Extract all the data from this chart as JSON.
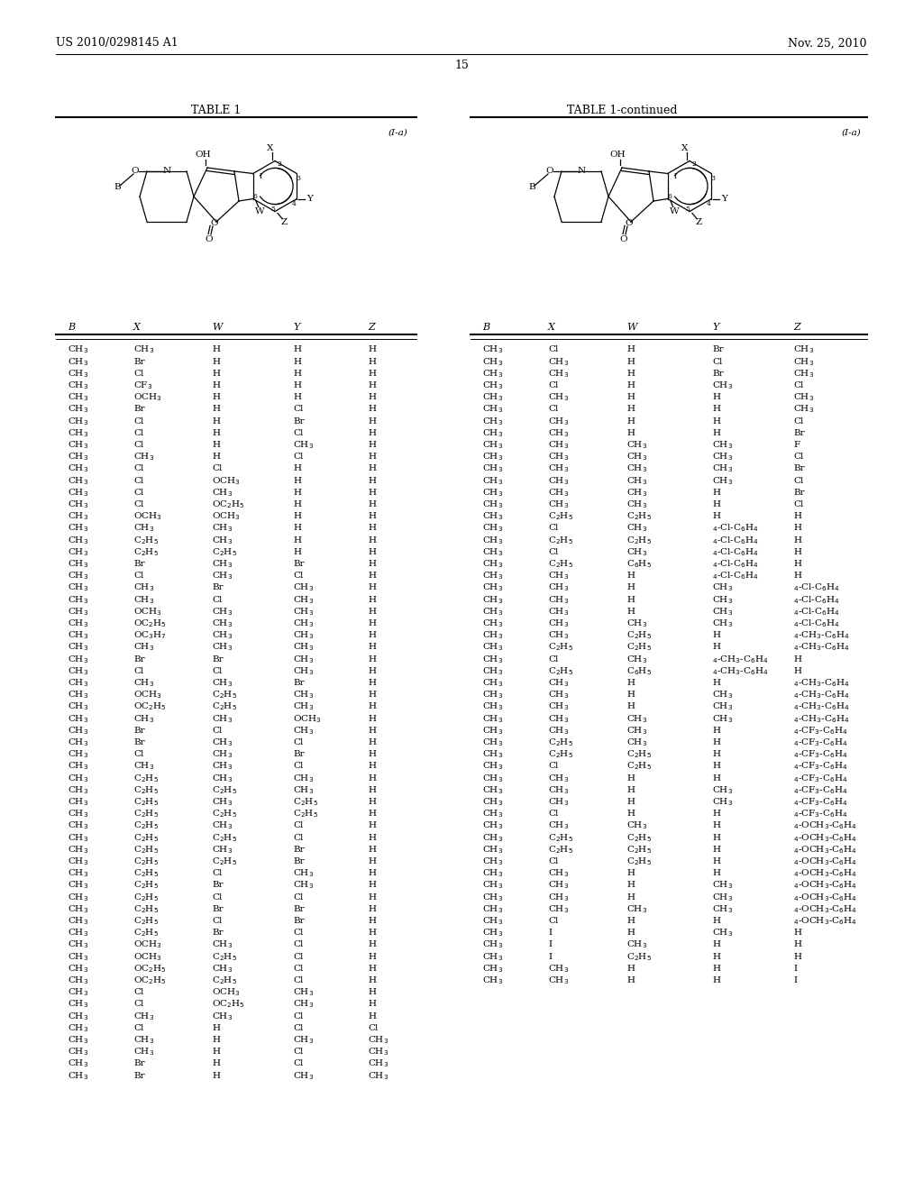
{
  "header_left": "US 2010/0298145 A1",
  "header_right": "Nov. 25, 2010",
  "page_number": "15",
  "table1_title": "TABLE 1",
  "table2_title": "TABLE 1-continued",
  "formula_label": "(I-a)",
  "col_headers": [
    "B",
    "X",
    "W",
    "Y",
    "Z"
  ],
  "table1_rows": [
    [
      "CH3",
      "CH3",
      "H",
      "H",
      "H"
    ],
    [
      "CH3",
      "Br",
      "H",
      "H",
      "H"
    ],
    [
      "CH3",
      "Cl",
      "H",
      "H",
      "H"
    ],
    [
      "CH3",
      "CF3",
      "H",
      "H",
      "H"
    ],
    [
      "CH3",
      "OCH3",
      "H",
      "H",
      "H"
    ],
    [
      "CH3",
      "Br",
      "H",
      "Cl",
      "H"
    ],
    [
      "CH3",
      "Cl",
      "H",
      "Br",
      "H"
    ],
    [
      "CH3",
      "Cl",
      "H",
      "Cl",
      "H"
    ],
    [
      "CH3",
      "Cl",
      "H",
      "CH3",
      "H"
    ],
    [
      "CH3",
      "CH3",
      "H",
      "Cl",
      "H"
    ],
    [
      "CH3",
      "Cl",
      "Cl",
      "H",
      "H"
    ],
    [
      "CH3",
      "Cl",
      "OCH3",
      "H",
      "H"
    ],
    [
      "CH3",
      "Cl",
      "CH3",
      "H",
      "H"
    ],
    [
      "CH3",
      "Cl",
      "OC2H5",
      "H",
      "H"
    ],
    [
      "CH3",
      "OCH3",
      "OCH3",
      "H",
      "H"
    ],
    [
      "CH3",
      "CH3",
      "CH3",
      "H",
      "H"
    ],
    [
      "CH3",
      "C2H5",
      "CH3",
      "H",
      "H"
    ],
    [
      "CH3",
      "C2H5",
      "C2H5",
      "H",
      "H"
    ],
    [
      "CH3",
      "Br",
      "CH3",
      "Br",
      "H"
    ],
    [
      "CH3",
      "Cl",
      "CH3",
      "Cl",
      "H"
    ],
    [
      "CH3",
      "CH3",
      "Br",
      "CH3",
      "H"
    ],
    [
      "CH3",
      "CH3",
      "Cl",
      "CH3",
      "H"
    ],
    [
      "CH3",
      "OCH3",
      "CH3",
      "CH3",
      "H"
    ],
    [
      "CH3",
      "OC2H5",
      "CH3",
      "CH3",
      "H"
    ],
    [
      "CH3",
      "OC3H7",
      "CH3",
      "CH3",
      "H"
    ],
    [
      "CH3",
      "CH3",
      "CH3",
      "CH3",
      "H"
    ],
    [
      "CH3",
      "Br",
      "Br",
      "CH3",
      "H"
    ],
    [
      "CH3",
      "Cl",
      "Cl",
      "CH3",
      "H"
    ],
    [
      "CH3",
      "CH3",
      "CH3",
      "Br",
      "H"
    ],
    [
      "CH3",
      "OCH3",
      "C2H5",
      "CH3",
      "H"
    ],
    [
      "CH3",
      "OC2H5",
      "C2H5",
      "CH3",
      "H"
    ],
    [
      "CH3",
      "CH3",
      "CH3",
      "OCH3",
      "H"
    ],
    [
      "CH3",
      "Br",
      "Cl",
      "CH3",
      "H"
    ],
    [
      "CH3",
      "Br",
      "CH3",
      "Cl",
      "H"
    ],
    [
      "CH3",
      "Cl",
      "CH3",
      "Br",
      "H"
    ],
    [
      "CH3",
      "CH3",
      "CH3",
      "Cl",
      "H"
    ],
    [
      "CH3",
      "C2H5",
      "CH3",
      "CH3",
      "H"
    ],
    [
      "CH3",
      "C2H5",
      "C2H5",
      "CH3",
      "H"
    ],
    [
      "CH3",
      "C2H5",
      "CH3",
      "C2H5",
      "H"
    ],
    [
      "CH3",
      "C2H5",
      "C2H5",
      "C2H5",
      "H"
    ],
    [
      "CH3",
      "C2H5",
      "CH3",
      "Cl",
      "H"
    ],
    [
      "CH3",
      "C2H5",
      "C2H5",
      "Cl",
      "H"
    ],
    [
      "CH3",
      "C2H5",
      "CH3",
      "Br",
      "H"
    ],
    [
      "CH3",
      "C2H5",
      "C2H5",
      "Br",
      "H"
    ],
    [
      "CH3",
      "C2H5",
      "Cl",
      "CH3",
      "H"
    ],
    [
      "CH3",
      "C2H5",
      "Br",
      "CH3",
      "H"
    ],
    [
      "CH3",
      "C2H5",
      "Cl",
      "Cl",
      "H"
    ],
    [
      "CH3",
      "C2H5",
      "Br",
      "Br",
      "H"
    ],
    [
      "CH3",
      "C2H5",
      "Cl",
      "Br",
      "H"
    ],
    [
      "CH3",
      "C2H5",
      "Br",
      "Cl",
      "H"
    ],
    [
      "CH3",
      "OCH3",
      "CH3",
      "Cl",
      "H"
    ],
    [
      "CH3",
      "OCH3",
      "C2H5",
      "Cl",
      "H"
    ],
    [
      "CH3",
      "OC2H5",
      "CH3",
      "Cl",
      "H"
    ],
    [
      "CH3",
      "OC2H5",
      "C2H5",
      "Cl",
      "H"
    ],
    [
      "CH3",
      "Cl",
      "OCH3",
      "CH3",
      "H"
    ],
    [
      "CH3",
      "Cl",
      "OC2H5",
      "CH3",
      "H"
    ],
    [
      "CH3",
      "CH3",
      "CH3",
      "Cl",
      "H"
    ],
    [
      "CH3",
      "Cl",
      "H",
      "Cl",
      "Cl"
    ],
    [
      "CH3",
      "CH3",
      "H",
      "CH3",
      "CH3"
    ],
    [
      "CH3",
      "CH3",
      "H",
      "Cl",
      "CH3"
    ],
    [
      "CH3",
      "Br",
      "H",
      "Cl",
      "CH3"
    ],
    [
      "CH3",
      "Br",
      "H",
      "CH3",
      "CH3"
    ]
  ],
  "table2_rows": [
    [
      "CH3",
      "Cl",
      "H",
      "Br",
      "CH3"
    ],
    [
      "CH3",
      "CH3",
      "H",
      "Cl",
      "CH3"
    ],
    [
      "CH3",
      "CH3",
      "H",
      "Br",
      "CH3"
    ],
    [
      "CH3",
      "Cl",
      "H",
      "CH3",
      "Cl"
    ],
    [
      "CH3",
      "CH3",
      "H",
      "H",
      "CH3"
    ],
    [
      "CH3",
      "Cl",
      "H",
      "H",
      "CH3"
    ],
    [
      "CH3",
      "CH3",
      "H",
      "H",
      "Cl"
    ],
    [
      "CH3",
      "CH3",
      "H",
      "H",
      "Br"
    ],
    [
      "CH3",
      "CH3",
      "CH3",
      "CH3",
      "F"
    ],
    [
      "CH3",
      "CH3",
      "CH3",
      "CH3",
      "Cl"
    ],
    [
      "CH3",
      "CH3",
      "CH3",
      "CH3",
      "Br"
    ],
    [
      "CH3",
      "CH3",
      "CH3",
      "CH3",
      "Cl"
    ],
    [
      "CH3",
      "CH3",
      "CH3",
      "H",
      "Br"
    ],
    [
      "CH3",
      "CH3",
      "CH3",
      "H",
      "Cl"
    ],
    [
      "CH3",
      "C2H5",
      "C2H5",
      "H",
      "H"
    ],
    [
      "CH3",
      "Cl",
      "CH3",
      "4-Cl-C6H4",
      "H"
    ],
    [
      "CH3",
      "C2H5",
      "C2H5",
      "4-Cl-C6H4",
      "H"
    ],
    [
      "CH3",
      "Cl",
      "CH3",
      "4-Cl-C6H4",
      "H"
    ],
    [
      "CH3",
      "C2H5",
      "C6H5",
      "4-Cl-C6H4",
      "H"
    ],
    [
      "CH3",
      "CH3",
      "H",
      "4-Cl-C6H4",
      "H"
    ],
    [
      "CH3",
      "CH3",
      "H",
      "CH3",
      "4-Cl-C6H4"
    ],
    [
      "CH3",
      "CH3",
      "H",
      "CH3",
      "4-Cl-C6H4"
    ],
    [
      "CH3",
      "CH3",
      "H",
      "CH3",
      "4-Cl-C6H4"
    ],
    [
      "CH3",
      "CH3",
      "CH3",
      "CH3",
      "4-Cl-C6H4"
    ],
    [
      "CH3",
      "CH3",
      "C2H5",
      "H",
      "4-CH3-C6H4"
    ],
    [
      "CH3",
      "C2H5",
      "C2H5",
      "H",
      "4-CH3-C6H4"
    ],
    [
      "CH3",
      "Cl",
      "CH3",
      "4-CH3-C6H4",
      "H"
    ],
    [
      "CH3",
      "C2H5",
      "C6H5",
      "4-CH3-C6H4",
      "H"
    ],
    [
      "CH3",
      "CH3",
      "H",
      "H",
      "4-CH3-C6H4"
    ],
    [
      "CH3",
      "CH3",
      "H",
      "CH3",
      "4-CH3-C6H4"
    ],
    [
      "CH3",
      "CH3",
      "H",
      "CH3",
      "4-CH3-C6H4"
    ],
    [
      "CH3",
      "CH3",
      "CH3",
      "CH3",
      "4-CH3-C6H4"
    ],
    [
      "CH3",
      "CH3",
      "CH3",
      "H",
      "4-CF3-C6H4"
    ],
    [
      "CH3",
      "C2H5",
      "CH3",
      "H",
      "4-CF3-C6H4"
    ],
    [
      "CH3",
      "C2H5",
      "C2H5",
      "H",
      "4-CF3-C6H4"
    ],
    [
      "CH3",
      "Cl",
      "C2H5",
      "H",
      "4-CF3-C6H4"
    ],
    [
      "CH3",
      "CH3",
      "H",
      "H",
      "4-CF3-C6H4"
    ],
    [
      "CH3",
      "CH3",
      "H",
      "CH3",
      "4-CF3-C6H4"
    ],
    [
      "CH3",
      "CH3",
      "H",
      "CH3",
      "4-CF3-C6H4"
    ],
    [
      "CH3",
      "Cl",
      "H",
      "H",
      "4-CF3-C6H4"
    ],
    [
      "CH3",
      "CH3",
      "CH3",
      "H",
      "4-OCH3-C6H4"
    ],
    [
      "CH3",
      "C2H5",
      "C2H5",
      "H",
      "4-OCH3-C6H4"
    ],
    [
      "CH3",
      "C2H5",
      "C2H5",
      "H",
      "4-OCH3-C6H4"
    ],
    [
      "CH3",
      "Cl",
      "C2H5",
      "H",
      "4-OCH3-C6H4"
    ],
    [
      "CH3",
      "CH3",
      "H",
      "H",
      "4-OCH3-C6H4"
    ],
    [
      "CH3",
      "CH3",
      "H",
      "CH3",
      "4-OCH3-C6H4"
    ],
    [
      "CH3",
      "CH3",
      "H",
      "CH3",
      "4-OCH3-C6H4"
    ],
    [
      "CH3",
      "CH3",
      "CH3",
      "CH3",
      "4-OCH3-C6H4"
    ],
    [
      "CH3",
      "Cl",
      "H",
      "H",
      "4-OCH3-C6H4"
    ],
    [
      "CH3",
      "I",
      "H",
      "CH3",
      "H"
    ],
    [
      "CH3",
      "I",
      "CH3",
      "H",
      "H"
    ],
    [
      "CH3",
      "I",
      "C2H5",
      "H",
      "H"
    ],
    [
      "CH3",
      "CH3",
      "H",
      "H",
      "I"
    ],
    [
      "CH3",
      "CH3",
      "H",
      "H",
      "I"
    ]
  ],
  "background_color": "#ffffff",
  "text_color": "#000000",
  "line_color": "#000000"
}
